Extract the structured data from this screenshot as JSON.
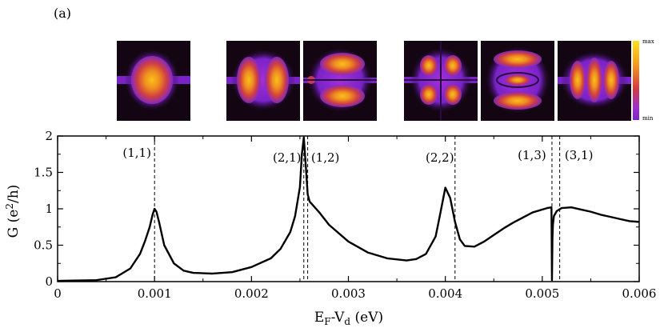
{
  "panel_label": "(a)",
  "colorbar": {
    "max_label": "max",
    "min_label": "min"
  },
  "insets": [
    {
      "mode": "(1,1)"
    },
    {
      "mode": "(2,1)"
    },
    {
      "mode": "(1,2)"
    },
    {
      "mode": "(2,2)"
    },
    {
      "mode": "(1,3)"
    },
    {
      "mode": "(3,1)"
    }
  ],
  "chart_data": {
    "type": "line",
    "title": "",
    "xlabel": {
      "main": "E",
      "sub1": "F",
      "mid": "-V",
      "sub2": "d",
      "tail": " (eV)"
    },
    "ylabel": {
      "main": "G (e",
      "sup": "2",
      "tail": "/h)"
    },
    "xlim": [
      0,
      0.006
    ],
    "ylim": [
      0,
      2
    ],
    "xticks": [
      0,
      0.001,
      0.002,
      0.003,
      0.004,
      0.005,
      0.006
    ],
    "xtick_labels": [
      "0",
      "0.001",
      "0.002",
      "0.003",
      "0.004",
      "0.005",
      "0.006"
    ],
    "yticks": [
      0,
      0.5,
      1,
      1.5,
      2
    ],
    "ytick_labels": [
      "0",
      "0.5",
      "1",
      "1.5",
      "2"
    ],
    "series": [
      {
        "name": "G",
        "x": [
          0,
          0.0004,
          0.0006,
          0.00075,
          0.00085,
          0.0009,
          0.00095,
          0.00098,
          0.001,
          0.00102,
          0.00105,
          0.0011,
          0.0012,
          0.0013,
          0.0014,
          0.0016,
          0.0018,
          0.002,
          0.0022,
          0.0023,
          0.0024,
          0.00245,
          0.0025,
          0.00252,
          0.00254,
          0.00256,
          0.00258,
          0.0026,
          0.0027,
          0.0028,
          0.003,
          0.0032,
          0.0034,
          0.0036,
          0.0037,
          0.0038,
          0.0039,
          0.00395,
          0.004,
          0.00405,
          0.0041,
          0.00415,
          0.0042,
          0.0043,
          0.0044,
          0.0045,
          0.0046,
          0.0047,
          0.0048,
          0.0049,
          0.00505,
          0.005095,
          0.0051,
          0.005105,
          0.00511,
          0.00512,
          0.00515,
          0.0052,
          0.0053,
          0.0054,
          0.0055,
          0.0056,
          0.0057,
          0.0058,
          0.0059,
          0.006
        ],
        "y": [
          0.01,
          0.02,
          0.06,
          0.18,
          0.38,
          0.55,
          0.75,
          0.92,
          1.0,
          0.96,
          0.8,
          0.5,
          0.25,
          0.15,
          0.12,
          0.11,
          0.13,
          0.2,
          0.32,
          0.45,
          0.68,
          0.9,
          1.3,
          1.75,
          1.98,
          1.6,
          1.2,
          1.1,
          0.95,
          0.78,
          0.55,
          0.4,
          0.32,
          0.29,
          0.31,
          0.38,
          0.62,
          0.95,
          1.29,
          1.15,
          0.82,
          0.58,
          0.49,
          0.48,
          0.55,
          0.64,
          0.73,
          0.81,
          0.88,
          0.95,
          1.01,
          1.02,
          0.02,
          0.6,
          0.78,
          0.9,
          0.97,
          1.01,
          1.02,
          0.99,
          0.96,
          0.92,
          0.89,
          0.86,
          0.83,
          0.82
        ]
      }
    ],
    "markers": [
      {
        "label": "(1,1)",
        "x": 0.001
      },
      {
        "label": "(2,1)",
        "x": 0.00254
      },
      {
        "label": "(1,2)",
        "x": 0.00258
      },
      {
        "label": "(2,2)",
        "x": 0.0041
      },
      {
        "label": "(1,3)",
        "x": 0.0051
      },
      {
        "label": "(3,1)",
        "x": 0.00518
      }
    ]
  }
}
